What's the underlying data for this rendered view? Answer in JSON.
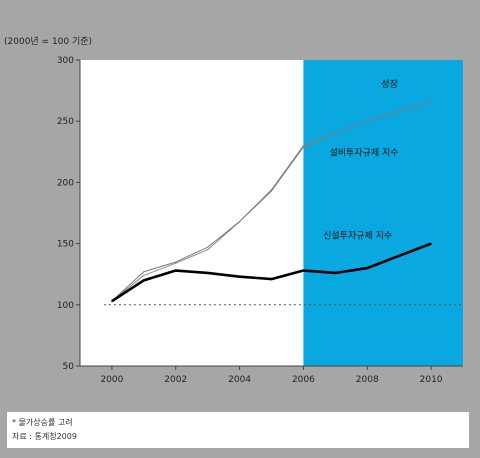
{
  "unit_label": "(2000년 = 100 기준)",
  "footnotes": [
    "* 물가상승률 고려",
    "자료 : 통계청2009"
  ],
  "colors": {
    "background": "#a6a6a6",
    "plot_bg": "#ffffff",
    "forecast_band": "#0aa8e0",
    "series_gdp": "#8a8a8a",
    "series_equipment": "#7a7a7a",
    "series_construction": "#000000",
    "baseline": "#555555"
  },
  "chart_data": {
    "type": "line",
    "title": "",
    "xlabel": "",
    "ylabel": "(2000년 = 100 기준)",
    "x": [
      2000,
      2001,
      2002,
      2003,
      2004,
      2005,
      2006,
      2007,
      2008,
      2009,
      2010
    ],
    "xticks": [
      "2000",
      "2002",
      "2004",
      "2006",
      "2008",
      "2010"
    ],
    "yticks": [
      "50",
      "100",
      "150",
      "200",
      "250",
      "300"
    ],
    "xlim": [
      1999,
      2011
    ],
    "ylim": [
      50,
      300
    ],
    "grid": false,
    "shaded_region": {
      "from": 2006,
      "to": 2011
    },
    "baseline": 100,
    "series": [
      {
        "name": "성장",
        "key": "gdp",
        "values": [
          103,
          124,
          134,
          145,
          168,
          194,
          230,
          240,
          250,
          258,
          266
        ],
        "label_x": 2008.7,
        "label_y": 278
      },
      {
        "name": "설비투자규제 지수",
        "key": "equipment",
        "values": [
          103,
          127,
          135,
          147,
          168,
          193,
          229,
          240,
          250,
          258,
          266
        ],
        "label_x": 2007.9,
        "label_y": 222
      },
      {
        "name": "신설투자규제 지수",
        "key": "construction",
        "values": [
          103,
          120,
          128,
          126,
          123,
          121,
          128,
          126,
          130,
          140,
          150
        ],
        "label_x": 2007.7,
        "label_y": 154
      }
    ]
  }
}
